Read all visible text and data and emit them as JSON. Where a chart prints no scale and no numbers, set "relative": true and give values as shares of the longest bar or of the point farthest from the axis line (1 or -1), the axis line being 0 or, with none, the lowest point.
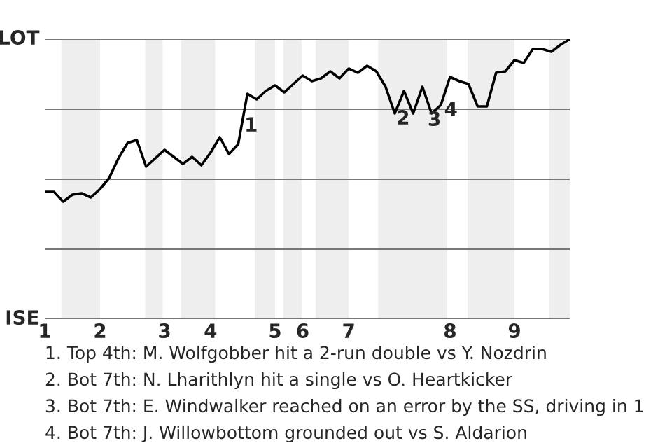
{
  "chart_data": {
    "type": "line",
    "relative": true,
    "categories": [
      "1",
      null,
      null,
      null,
      null,
      null,
      "2",
      null,
      null,
      null,
      null,
      null,
      null,
      "3",
      null,
      null,
      null,
      null,
      "4",
      null,
      null,
      null,
      null,
      null,
      null,
      "5",
      null,
      null,
      "6",
      null,
      null,
      null,
      null,
      "7",
      null,
      null,
      null,
      null,
      null,
      null,
      null,
      null,
      null,
      null,
      "8",
      null,
      null,
      null,
      null,
      null,
      null,
      "9",
      null,
      null,
      null,
      null,
      null,
      null
    ],
    "series": [
      {
        "color": "#000000",
        "values": [
          0.455,
          0.455,
          0.42,
          0.445,
          0.45,
          0.435,
          0.465,
          0.505,
          0.575,
          0.63,
          0.64,
          0.545,
          0.575,
          0.605,
          0.58,
          0.555,
          0.58,
          0.55,
          0.595,
          0.65,
          0.59,
          0.625,
          0.805,
          0.785,
          0.815,
          0.835,
          0.81,
          0.84,
          0.87,
          0.85,
          0.86,
          0.885,
          0.86,
          0.895,
          0.88,
          0.905,
          0.885,
          0.83,
          0.735,
          0.815,
          0.735,
          0.83,
          0.735,
          0.765,
          0.865,
          0.85,
          0.84,
          0.76,
          0.76,
          0.88,
          0.885,
          0.925,
          0.915,
          0.965,
          0.965,
          0.955,
          0.98,
          1.0
        ]
      }
    ],
    "grid": "y",
    "marker": "none",
    "annotations": [
      "LOT",
      "ISE",
      "1",
      "2",
      "3",
      "4",
      "1. Top 4th: M. Wolfgobber hit a 2-run double vs Y. Nozdrin",
      "2. Bot 7th: N. Lharithlyn hit a single vs O. Heartkicker",
      "3. Bot 7th: E. Windwalker reached on an error by the SS, driving in 1",
      "4. Bot 7th: J. Willowbottom grounded out vs S. Aldarion"
    ]
  }
}
